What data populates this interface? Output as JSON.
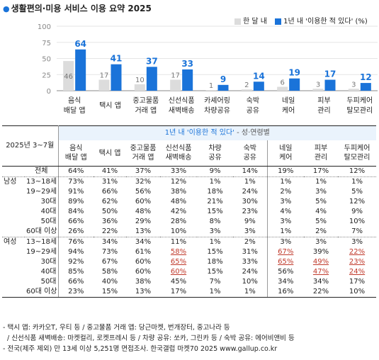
{
  "title": "생활편의·미용 서비스 이용 요약 2025",
  "legend": [
    {
      "label": "한 달 내",
      "color": "#dcdcdc"
    },
    {
      "label": "1년 내 '이용한 적 있다' (%)",
      "color": "#1a73d9"
    }
  ],
  "chart_data": {
    "type": "bar",
    "categories": [
      "음식 배달 앱",
      "택시 앱",
      "중고물품 거래 앱",
      "신선식품 새벽배송",
      "카셰어링 차량공유",
      "숙박 공유",
      "네일 케어",
      "피부 관리",
      "두피케어 탈모관리"
    ],
    "series": [
      {
        "name": "한 달 내",
        "values": [
          46,
          17,
          10,
          17,
          1,
          2,
          6,
          3,
          3
        ]
      },
      {
        "name": "1년 내 '이용한 적 있다' (%)",
        "values": [
          64,
          41,
          37,
          33,
          9,
          14,
          19,
          17,
          12
        ]
      }
    ],
    "ylim": [
      0,
      100
    ],
    "yticks": [
      "0",
      "25",
      "50",
      "75",
      "100"
    ],
    "xlabels": [
      [
        "음식",
        "배달 앱"
      ],
      [
        "택시 앱",
        ""
      ],
      [
        "중고물품",
        "거래 앱"
      ],
      [
        "신선식품",
        "새벽배송"
      ],
      [
        "카셰어링",
        "차량공유"
      ],
      [
        "숙박",
        "공유"
      ],
      [
        "네일",
        "케어"
      ],
      [
        "피부",
        "관리"
      ],
      [
        "두피케어",
        "탈모관리"
      ]
    ],
    "colors": {
      "month": "#dcdcdc",
      "year": "#1a73d9",
      "monthLabel": "#777777",
      "yearLabel": "#1a73d9"
    }
  },
  "table": {
    "corner": "2025년 3~7월",
    "subheader": {
      "main": "1년 내 '이용한 적 있다'",
      "suffix": " - 성·연령별"
    },
    "columns": [
      [
        "음식",
        "배달 앱"
      ],
      [
        "택시 앱",
        ""
      ],
      [
        "중고물품",
        "거래 앱"
      ],
      [
        "신선식품",
        "새벽배송"
      ],
      [
        "차량",
        "공유"
      ],
      [
        "숙박",
        "공유"
      ],
      [
        "네일",
        "케어"
      ],
      [
        "피부",
        "관리"
      ],
      [
        "두피케어",
        "탈모관리"
      ]
    ],
    "rows": [
      {
        "g": "",
        "l": "전체",
        "v": [
          "64%",
          "41%",
          "37%",
          "33%",
          "9%",
          "14%",
          "19%",
          "17%",
          "12%"
        ]
      },
      {
        "g": "남성",
        "l": "13~18세",
        "v": [
          "73%",
          "31%",
          "32%",
          "12%",
          "1%",
          "1%",
          "1%",
          "1%",
          "1%"
        ]
      },
      {
        "g": "",
        "l": "19~29세",
        "v": [
          "91%",
          "66%",
          "56%",
          "38%",
          "18%",
          "24%",
          "2%",
          "3%",
          "5%"
        ]
      },
      {
        "g": "",
        "l": "30대",
        "v": [
          "89%",
          "62%",
          "60%",
          "48%",
          "21%",
          "30%",
          "3%",
          "5%",
          "12%"
        ]
      },
      {
        "g": "",
        "l": "40대",
        "v": [
          "84%",
          "50%",
          "48%",
          "42%",
          "15%",
          "23%",
          "4%",
          "4%",
          "9%"
        ]
      },
      {
        "g": "",
        "l": "50대",
        "v": [
          "66%",
          "36%",
          "29%",
          "28%",
          "8%",
          "9%",
          "3%",
          "5%",
          "10%"
        ]
      },
      {
        "g": "",
        "l": "60대 이상",
        "v": [
          "26%",
          "22%",
          "13%",
          "10%",
          "3%",
          "3%",
          "1%",
          "2%",
          "7%"
        ]
      },
      {
        "g": "여성",
        "l": "13~18세",
        "v": [
          "76%",
          "34%",
          "34%",
          "11%",
          "1%",
          "2%",
          "3%",
          "3%",
          "3%"
        ]
      },
      {
        "g": "",
        "l": "19~29세",
        "v": [
          "94%",
          "73%",
          "61%",
          "58%",
          "15%",
          "31%",
          "67%",
          "39%",
          "22%"
        ]
      },
      {
        "g": "",
        "l": "30대",
        "v": [
          "92%",
          "67%",
          "60%",
          "65%",
          "18%",
          "33%",
          "65%",
          "49%",
          "23%"
        ]
      },
      {
        "g": "",
        "l": "40대",
        "v": [
          "85%",
          "58%",
          "60%",
          "60%",
          "15%",
          "24%",
          "56%",
          "47%",
          "24%"
        ]
      },
      {
        "g": "",
        "l": "50대",
        "v": [
          "66%",
          "40%",
          "38%",
          "45%",
          "7%",
          "10%",
          "34%",
          "34%",
          "17%"
        ]
      },
      {
        "g": "",
        "l": "60대 이상",
        "v": [
          "23%",
          "15%",
          "13%",
          "17%",
          "1%",
          "1%",
          "16%",
          "22%",
          "10%"
        ]
      }
    ],
    "underline": [
      [
        8,
        3
      ],
      [
        9,
        3
      ],
      [
        10,
        3
      ],
      [
        8,
        6
      ],
      [
        9,
        6
      ],
      [
        9,
        7
      ],
      [
        10,
        7
      ],
      [
        8,
        8
      ],
      [
        9,
        8
      ],
      [
        10,
        8
      ]
    ]
  },
  "notes": [
    "- 택시 앱: 카카오T, 우티 등 / 중고물품 거래 앱: 당근마켓, 번개장터, 중고나라 등",
    "/ 신선식품 새벽배송: 마켓컬리, 로켓프레시 등 / 차량 공유: 쏘카, 그린카 등 / 숙박 공유: 에어비앤비 등",
    "- 전국(제주 제외) 만 13세 이상 5,251명 면접조사. 한국갤럽 마켓70 2025 www.gallup.co.kr"
  ]
}
